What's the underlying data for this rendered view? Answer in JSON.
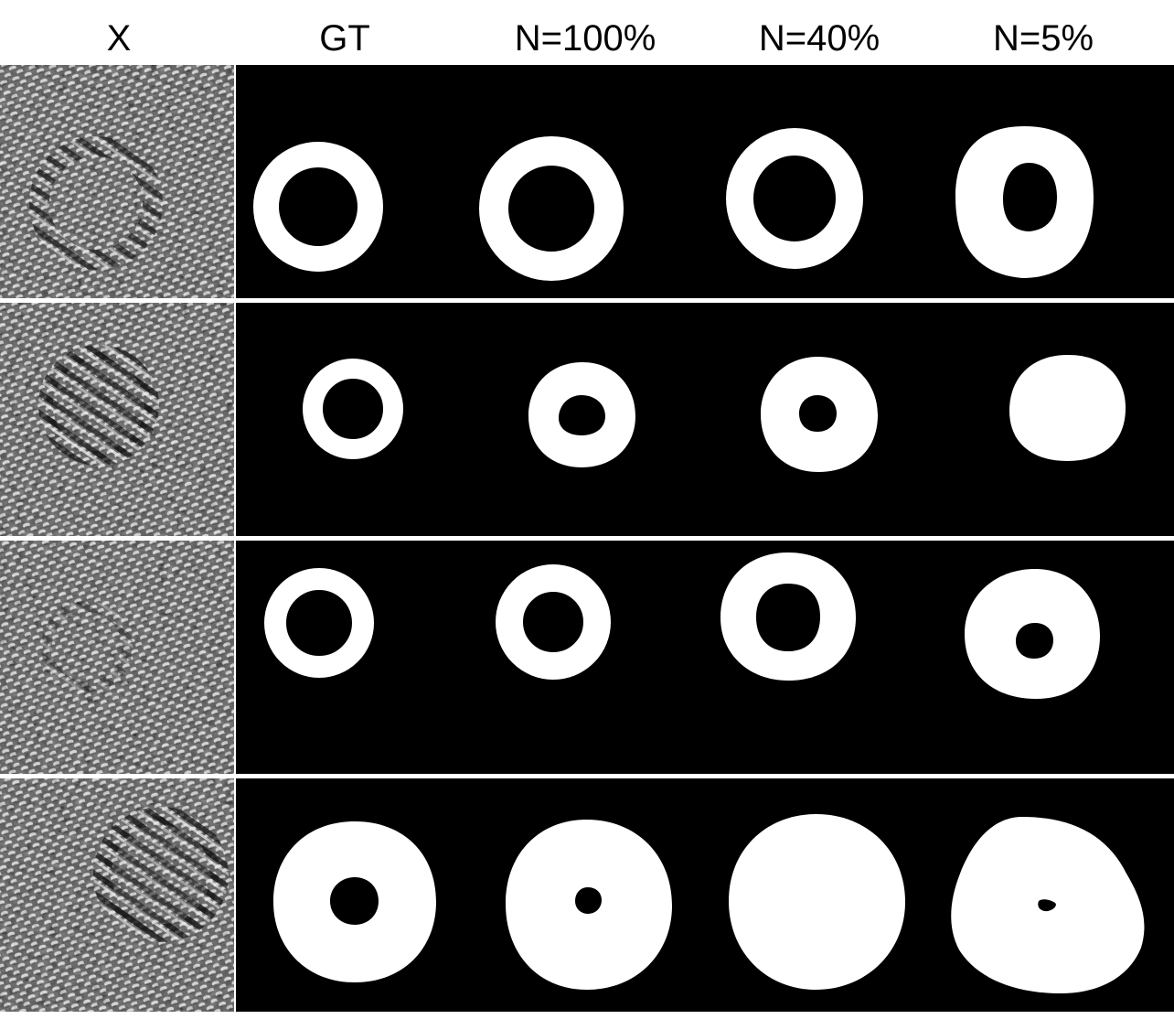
{
  "figure": {
    "column_headers": [
      "X",
      "GT",
      "N=100%",
      "N=40%",
      "N=5%"
    ],
    "colors": {
      "background": "#ffffff",
      "mask_background": "#000000",
      "mask_foreground": "#ffffff",
      "texture_base": "#6f6f6f"
    },
    "rows": [
      {
        "texture_artifact": "circular-distortion",
        "masks": [
          "thin-ring",
          "thick-ring",
          "thick-ring",
          "thick-ring-elliptical-hole"
        ]
      },
      {
        "texture_artifact": "circular-distortion",
        "masks": [
          "ring",
          "thick-ring-small-hole",
          "thick-ring-small-hole",
          "filled-blob"
        ]
      },
      {
        "texture_artifact": "faint-distortion",
        "masks": [
          "ring",
          "ring",
          "thick-ring",
          "thick-ring-small-hole"
        ]
      },
      {
        "texture_artifact": "circular-distortion",
        "masks": [
          "thick-ring-small-hole",
          "thick-ring-tiny-hole",
          "filled-disc",
          "filled-blob-speck"
        ]
      }
    ]
  }
}
